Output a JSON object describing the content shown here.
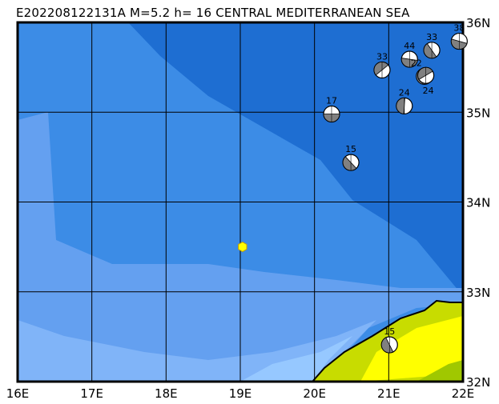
{
  "title": "E202208122131A M=5.2 h= 16 CENTRAL MEDITERRANEAN SEA",
  "map": {
    "lon_range": [
      16,
      22
    ],
    "lat_range": [
      32,
      36
    ],
    "lon_labels": [
      "16E",
      "17E",
      "18E",
      "19E",
      "20E",
      "21E",
      "22E"
    ],
    "lat_labels": [
      "32N",
      "33N",
      "34N",
      "35N",
      "36N"
    ],
    "colors": {
      "deep_sea": "#1e6ed2",
      "mid_sea": "#3c8ce6",
      "shelf": "#64a0f0",
      "shallow": "#96c8ff",
      "land_low": "#c8dc00",
      "land_high": "#ffff00",
      "epicenter": "#ffff00",
      "mechanism_fill": "#808080"
    },
    "epicenter": {
      "lon": 19.03,
      "lat": 33.5,
      "icon": "yellow-hexagon"
    },
    "mechanisms": [
      {
        "depth": "17",
        "lon": 20.23,
        "lat": 34.98
      },
      {
        "depth": "15",
        "lon": 20.49,
        "lat": 34.44
      },
      {
        "depth": "24",
        "lon": 21.21,
        "lat": 35.07
      },
      {
        "depth": "33",
        "lon": 20.91,
        "lat": 35.47
      },
      {
        "depth": "44",
        "lon": 21.28,
        "lat": 35.59
      },
      {
        "depth": "33",
        "lon": 21.58,
        "lat": 35.69
      },
      {
        "depth": "22",
        "lon": 21.48,
        "lat": 35.4
      },
      {
        "depth": "24",
        "lon": 21.5,
        "lat": 35.41
      },
      {
        "depth": "38",
        "lon": 21.95,
        "lat": 35.79
      },
      {
        "depth": "15",
        "lon": 21.01,
        "lat": 32.41
      }
    ]
  }
}
